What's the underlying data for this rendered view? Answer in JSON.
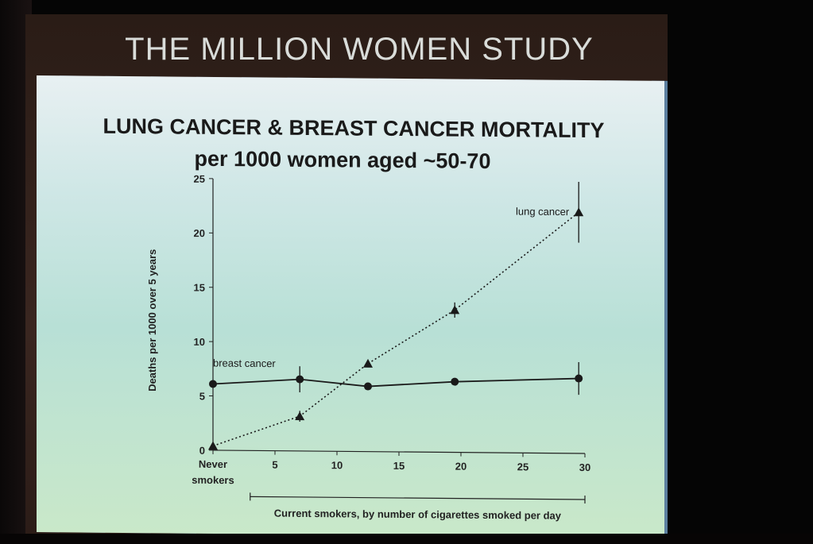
{
  "banner": {
    "title": "THE MILLION WOMEN STUDY"
  },
  "slide": {
    "title_line1": "LUNG CANCER & BREAST CANCER MORTALITY",
    "title_line2": "per 1000 women aged ~50-70"
  },
  "chart_data": {
    "type": "line",
    "title": "LUNG CANCER & BREAST CANCER MORTALITY per 1000 women aged ~50-70",
    "xlabel": "Current smokers, by number of cigarettes smoked per day",
    "ylabel": "Deaths per 1000 over 5 years",
    "xlim": [
      0,
      30
    ],
    "ylim": [
      0,
      25
    ],
    "x_ticks": [
      {
        "value": 0,
        "label": "Never"
      },
      {
        "value": 5,
        "label": "5"
      },
      {
        "value": 10,
        "label": "10"
      },
      {
        "value": 15,
        "label": "15"
      },
      {
        "value": 20,
        "label": "20"
      },
      {
        "value": 25,
        "label": "25"
      },
      {
        "value": 30,
        "label": "30"
      }
    ],
    "x_tick_sublabel": "smokers",
    "y_ticks": [
      0,
      5,
      10,
      15,
      20,
      25
    ],
    "grid": false,
    "series": [
      {
        "name": "breast cancer",
        "marker": "circle",
        "line": "solid",
        "points": [
          {
            "x": 0,
            "y": 6.1
          },
          {
            "x": 7,
            "y": 6.6,
            "err": 1.2
          },
          {
            "x": 12.5,
            "y": 6.0
          },
          {
            "x": 19.5,
            "y": 6.5
          },
          {
            "x": 29.5,
            "y": 6.9,
            "err": 1.5
          }
        ]
      },
      {
        "name": "lung cancer",
        "marker": "triangle",
        "line": "dotted",
        "points": [
          {
            "x": 0,
            "y": 0.4
          },
          {
            "x": 7,
            "y": 3.2,
            "err": 0.5
          },
          {
            "x": 12.5,
            "y": 8.1
          },
          {
            "x": 19.5,
            "y": 13.1,
            "err": 0.7
          },
          {
            "x": 29.5,
            "y": 22.2,
            "err": 2.8
          }
        ]
      }
    ]
  }
}
